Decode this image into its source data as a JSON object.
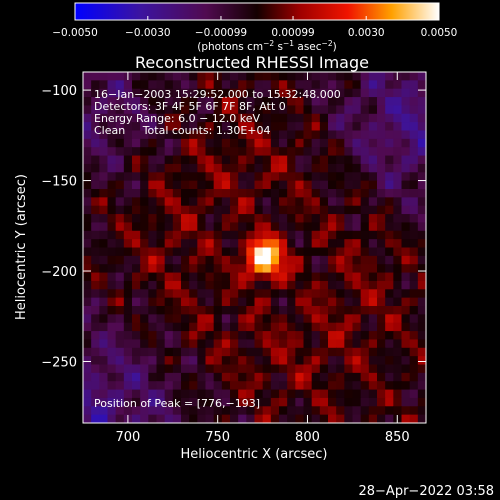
{
  "chart_data": {
    "type": "heatmap",
    "title": "Reconstructed RHESSI Image",
    "xlabel": "Heliocentric X (arcsec)",
    "ylabel": "Heliocentric Y (arcsec)",
    "xlim": [
      675,
      866
    ],
    "ylim": [
      -284,
      -90
    ],
    "x_ticks": [
      700,
      750,
      800,
      850
    ],
    "x_tick_labels": [
      "700",
      "750",
      "800",
      "850"
    ],
    "y_ticks": [
      -100,
      -150,
      -200,
      -250
    ],
    "y_tick_labels": [
      "−100",
      "−150",
      "−200",
      "−250"
    ],
    "colorbar": {
      "min": -0.005,
      "max": 0.005,
      "ticks": [
        -0.005,
        -0.003,
        -0.00099,
        0.00099,
        0.003,
        0.005
      ],
      "tick_labels": [
        "−0.0050",
        "−0.0030",
        "−0.00099",
        "0.00099",
        "0.0030",
        "0.0050"
      ],
      "unit_label": [
        "(photons cm",
        "−2",
        " s",
        "−1",
        " asec",
        "−2",
        ")"
      ]
    },
    "annotations": [
      "16−Jan−2003 15:29:52.000 to 15:32:48.000",
      "Detectors: 3F 4F 5F 6F 7F 8F, Att 0",
      "Energy Range: 6.0 − 12.0 keV",
      "Clean     Total counts: 1.30E+04"
    ],
    "peak_label": "Position of Peak = [776,−193]",
    "peak": {
      "x": 776,
      "y": -193,
      "value": 0.005
    },
    "footer_timestamp": "28−Apr−2022 03:58",
    "colors": {
      "background": "#000000",
      "text": "#ffffff"
    }
  }
}
